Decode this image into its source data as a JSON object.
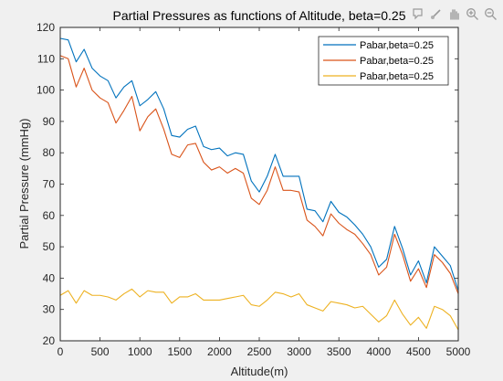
{
  "figure": {
    "background": "#f0f0f0",
    "toolbar": [
      {
        "name": "datatip-icon"
      },
      {
        "name": "brush-icon"
      },
      {
        "name": "pan-icon"
      },
      {
        "name": "zoom-in-icon"
      },
      {
        "name": "zoom-out-icon"
      },
      {
        "name": "home-icon"
      }
    ]
  },
  "chart_data": {
    "type": "line",
    "title": "Partial Pressures as functions of Altitude, beta=0.25",
    "xlabel": "Altitude(m)",
    "ylabel": "Partial Pressure (mmHg)",
    "xlim": [
      0,
      5000
    ],
    "ylim": [
      20,
      120
    ],
    "xticks": [
      0,
      500,
      1000,
      1500,
      2000,
      2500,
      3000,
      3500,
      4000,
      4500,
      5000
    ],
    "yticks": [
      20,
      30,
      40,
      50,
      60,
      70,
      80,
      90,
      100,
      110,
      120
    ],
    "grid": false,
    "legend_position": "top-right",
    "x": [
      0,
      100,
      200,
      300,
      400,
      500,
      600,
      700,
      800,
      900,
      1000,
      1100,
      1200,
      1300,
      1400,
      1500,
      1600,
      1700,
      1800,
      1900,
      2000,
      2100,
      2200,
      2300,
      2400,
      2500,
      2600,
      2700,
      2800,
      2900,
      3000,
      3100,
      3200,
      3300,
      3400,
      3500,
      3600,
      3700,
      3800,
      3900,
      4000,
      4100,
      4200,
      4300,
      4400,
      4500,
      4600,
      4700,
      4800,
      4900,
      5000
    ],
    "series": [
      {
        "name": "Pabar,beta=0.25",
        "color": "#0072BD",
        "values": [
          116.5,
          116,
          109,
          113,
          107,
          104.5,
          103,
          97.5,
          101,
          103,
          95,
          97,
          99.5,
          94,
          85.5,
          85,
          87.5,
          88.5,
          82,
          81,
          81.5,
          79,
          80,
          79.5,
          71,
          67.5,
          72.5,
          79.5,
          72.5,
          72.5,
          72.5,
          62,
          61.5,
          58,
          64.5,
          61,
          59.5,
          57,
          54,
          50,
          43.5,
          46,
          56.5,
          49.5,
          41,
          45.5,
          38.5,
          50,
          47,
          44,
          36
        ]
      },
      {
        "name": "Pabar,beta=0.25",
        "color": "#D95319",
        "values": [
          111,
          110,
          101,
          107,
          100,
          97.5,
          96,
          89.5,
          93.5,
          98,
          87,
          91.5,
          94,
          87.5,
          79.5,
          78.5,
          82.5,
          83,
          77,
          74.5,
          75.5,
          73.5,
          75,
          73.5,
          65.5,
          63.5,
          68,
          75.5,
          68,
          68,
          67.5,
          58.5,
          56.5,
          53.5,
          60.5,
          57.5,
          55.5,
          54,
          51,
          47.5,
          41,
          43.5,
          54,
          47.5,
          39,
          43,
          37,
          47.5,
          45,
          41.5,
          35
        ]
      },
      {
        "name": "Pabar,beta=0.25",
        "color": "#EDB120",
        "values": [
          34.5,
          36,
          32,
          36,
          34.5,
          34.5,
          34,
          33,
          35,
          36.5,
          34,
          36,
          35.5,
          35.5,
          32,
          34,
          34,
          35,
          33,
          33,
          33,
          33.5,
          34,
          34.5,
          31.5,
          31,
          33,
          35.5,
          35,
          34,
          35,
          31.5,
          30.5,
          29.5,
          32.5,
          32,
          31.5,
          30.5,
          31,
          28.5,
          26,
          28,
          33,
          28.5,
          25,
          27.5,
          24,
          31,
          30,
          28,
          23.5
        ]
      }
    ]
  }
}
